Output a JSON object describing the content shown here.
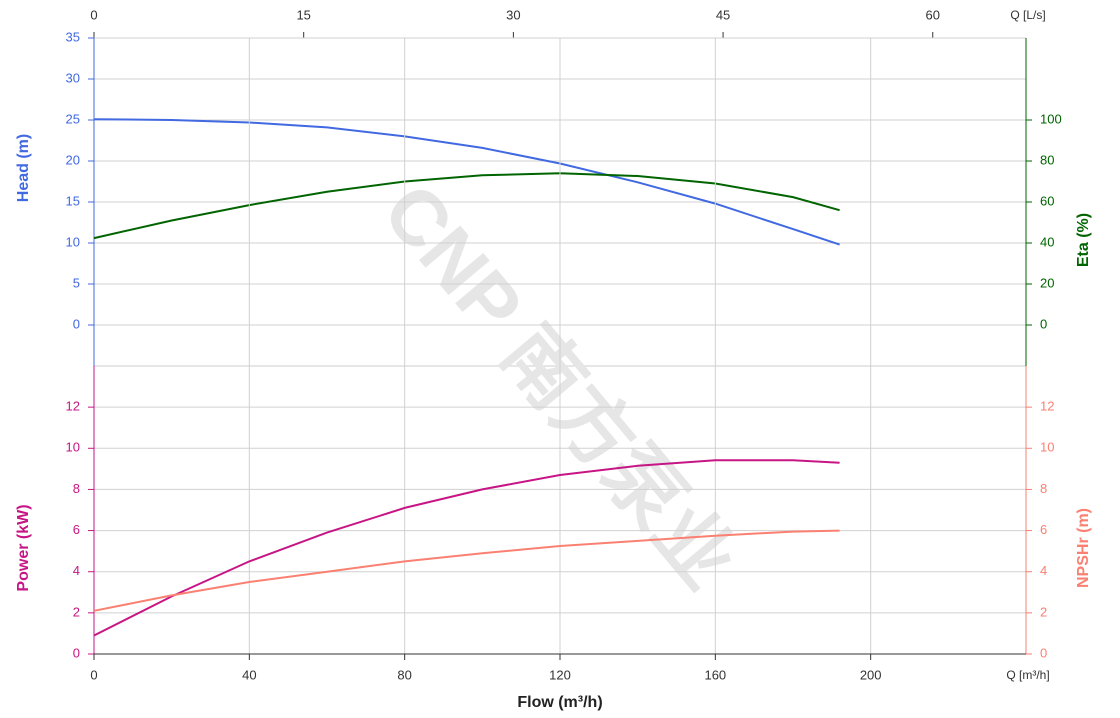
{
  "chart_data": [
    {
      "type": "line",
      "x2label": "Q [L/s]",
      "x2lim": [
        0,
        66.67
      ],
      "x2ticks": [
        0,
        15,
        30,
        45,
        60
      ],
      "xlim": [
        0,
        240
      ],
      "ylabel": "Head (m)",
      "ylim": [
        -5,
        35
      ],
      "yticks": [
        0,
        5,
        10,
        15,
        20,
        25,
        30,
        35
      ],
      "ycolor": "#4169e1",
      "y2label": "Eta (%)",
      "y2lim": [
        -20,
        140
      ],
      "y2ticks": [
        0,
        20,
        40,
        60,
        80,
        100
      ],
      "y2color": "#006400",
      "grid": true,
      "watermark": "CNP 南方泵业",
      "x": [
        0,
        20,
        40,
        60,
        80,
        100,
        120,
        140,
        160,
        180,
        192
      ],
      "series": [
        {
          "name": "Head",
          "color": "#4169e1",
          "values": [
            25.1,
            25.0,
            24.7,
            24.1,
            23.0,
            21.6,
            19.7,
            17.4,
            14.8,
            11.7,
            9.8
          ]
        },
        {
          "name": "Eta",
          "color": "#006400",
          "axis": "y2",
          "values": [
            42.4,
            51,
            58.5,
            65,
            70,
            73,
            74,
            72.7,
            69,
            62.4,
            56
          ]
        }
      ]
    },
    {
      "type": "line",
      "xlabel": "Flow (m³/h)",
      "xunit": "Q [m³/h]",
      "xlim": [
        0,
        240
      ],
      "xticks": [
        0,
        40,
        80,
        120,
        160,
        200
      ],
      "ylabel": "Power (kW)",
      "ylim": [
        0,
        14
      ],
      "yticks": [
        0,
        2,
        4,
        6,
        8,
        10,
        12
      ],
      "ycolor": "#c71585",
      "y2label": "NPSHr (m)",
      "y2lim": [
        0,
        14
      ],
      "y2ticks": [
        0,
        2,
        4,
        6,
        8,
        10,
        12
      ],
      "y2color": "#fa8072",
      "grid": true,
      "x": [
        0,
        20,
        40,
        60,
        80,
        100,
        120,
        140,
        160,
        180,
        192
      ],
      "series": [
        {
          "name": "Power",
          "color": "#c71585",
          "values": [
            0.9,
            2.8,
            4.5,
            5.9,
            7.1,
            8.0,
            8.7,
            9.15,
            9.42,
            9.42,
            9.3
          ]
        },
        {
          "name": "NPSHr",
          "color": "#fa8072",
          "axis": "y2",
          "values": [
            2.1,
            2.85,
            3.5,
            4.0,
            4.5,
            4.9,
            5.25,
            5.5,
            5.75,
            5.95,
            6.0
          ]
        }
      ]
    }
  ]
}
